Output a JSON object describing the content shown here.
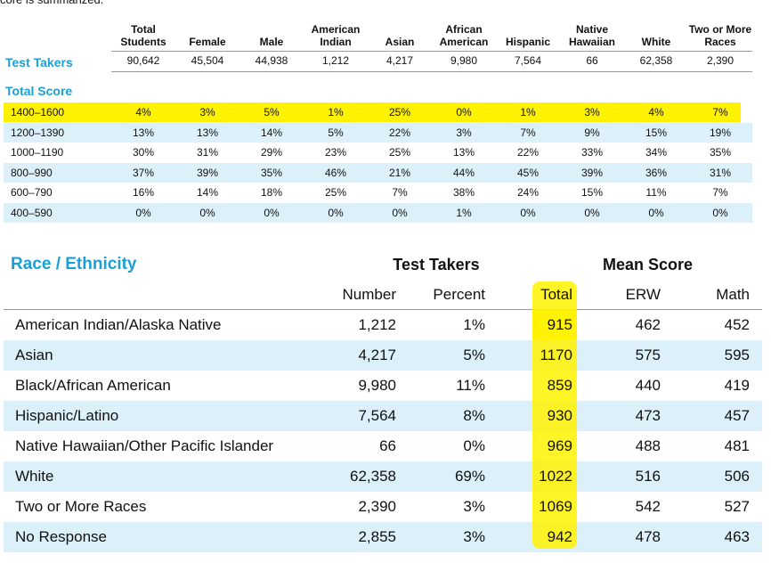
{
  "intro": "core is summarized.",
  "table1": {
    "headers": [
      "Total Students",
      "Female",
      "Male",
      "American Indian",
      "Asian",
      "African American",
      "Hispanic",
      "Native Hawaiian",
      "White",
      "Two or More Races"
    ],
    "test_takers_label": "Test Takers",
    "test_takers": [
      "90,642",
      "45,504",
      "44,938",
      "1,212",
      "4,217",
      "9,980",
      "7,564",
      "66",
      "62,358",
      "2,390"
    ],
    "section_label": "Total Score",
    "rows": [
      [
        "1400–1600",
        "4%",
        "3%",
        "5%",
        "1%",
        "25%",
        "0%",
        "1%",
        "3%",
        "4%",
        "7%"
      ],
      [
        "1200–1390",
        "13%",
        "13%",
        "14%",
        "5%",
        "22%",
        "3%",
        "7%",
        "9%",
        "15%",
        "19%"
      ],
      [
        "1000–1190",
        "30%",
        "31%",
        "29%",
        "23%",
        "25%",
        "13%",
        "22%",
        "33%",
        "34%",
        "35%"
      ],
      [
        "800–990",
        "37%",
        "39%",
        "35%",
        "46%",
        "21%",
        "44%",
        "45%",
        "39%",
        "36%",
        "31%"
      ],
      [
        "600–790",
        "16%",
        "14%",
        "18%",
        "25%",
        "7%",
        "38%",
        "24%",
        "15%",
        "11%",
        "7%"
      ],
      [
        "400–590",
        "0%",
        "0%",
        "0%",
        "0%",
        "0%",
        "1%",
        "0%",
        "0%",
        "0%",
        "0%"
      ]
    ]
  },
  "table2": {
    "title": "Race / Ethnicity",
    "group_headers": [
      "Test Takers",
      "Mean Score"
    ],
    "headers": [
      "Number",
      "Percent",
      "Total",
      "ERW",
      "Math"
    ],
    "rows": [
      [
        "American Indian/Alaska Native",
        "1,212",
        "1%",
        "915",
        "462",
        "452"
      ],
      [
        "Asian",
        "4,217",
        "5%",
        "1170",
        "575",
        "595"
      ],
      [
        "Black/African American",
        "9,980",
        "11%",
        "859",
        "440",
        "419"
      ],
      [
        "Hispanic/Latino",
        "7,564",
        "8%",
        "930",
        "473",
        "457"
      ],
      [
        "Native Hawaiian/Other Pacific Islander",
        "66",
        "0%",
        "969",
        "488",
        "481"
      ],
      [
        "White",
        "62,358",
        "69%",
        "1022",
        "516",
        "506"
      ],
      [
        "Two or More Races",
        "2,390",
        "3%",
        "1069",
        "542",
        "527"
      ],
      [
        "No Response",
        "2,855",
        "3%",
        "942",
        "478",
        "463"
      ]
    ]
  }
}
